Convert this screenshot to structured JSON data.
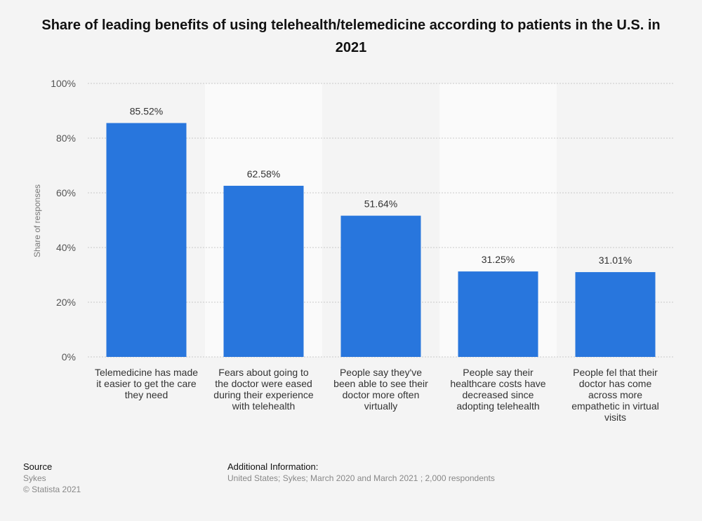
{
  "title": "Share of leading benefits of using telehealth/telemedicine according to patients in the U.S. in 2021",
  "chart_data": {
    "type": "bar",
    "categories": [
      "Telemedicine has made it easier to get the care they need",
      "Fears about going to the doctor were eased during their experience with telehealth",
      "People say they've been able to see their doctor more often virtually",
      "People say their healthcare costs have decreased since adopting telehealth",
      "People fel that their doctor has come across more empathetic in virtual visits"
    ],
    "category_lines": [
      [
        "Telemedicine has made",
        "it easier to get the care",
        "they need"
      ],
      [
        "Fears about going to",
        "the doctor were eased",
        "during their experience",
        "with telehealth"
      ],
      [
        "People say they've",
        "been able to see their",
        "doctor more often",
        "virtually"
      ],
      [
        "People say their",
        "healthcare costs have",
        "decreased since",
        "adopting telehealth"
      ],
      [
        "People fel that their",
        "doctor has come",
        "across more",
        "empathetic in virtual",
        "visits"
      ]
    ],
    "values": [
      85.52,
      62.58,
      51.64,
      31.25,
      31.01
    ],
    "value_labels": [
      "85.52%",
      "62.58%",
      "51.64%",
      "31.25%",
      "31.01%"
    ],
    "ylabel": "Share of responses",
    "xlabel": "",
    "ylim": [
      0,
      100
    ],
    "y_ticks": [
      0,
      20,
      40,
      60,
      80,
      100
    ],
    "y_tick_labels": [
      "0%",
      "20%",
      "40%",
      "60%",
      "80%",
      "100%"
    ],
    "grid": true,
    "bar_color": "#2876dd"
  },
  "footer": {
    "source_heading": "Source",
    "source_lines": [
      "Sykes",
      "© Statista 2021"
    ],
    "additional_heading": "Additional Information:",
    "additional_text": "United States; Sykes; March 2020 and March 2021 ; 2,000 respondents"
  }
}
